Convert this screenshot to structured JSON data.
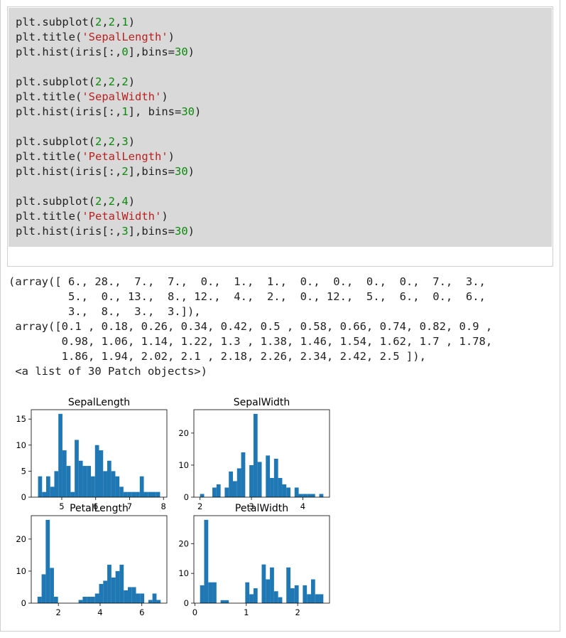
{
  "code": {
    "blocks": [
      [
        [
          {
            "t": "plt.subplot(",
            "c": "kw"
          },
          {
            "t": "2",
            "c": "num"
          },
          {
            "t": ",",
            "c": "kw"
          },
          {
            "t": "2",
            "c": "num"
          },
          {
            "t": ",",
            "c": "kw"
          },
          {
            "t": "1",
            "c": "num"
          },
          {
            "t": ")",
            "c": "kw"
          }
        ],
        [
          {
            "t": "plt.title(",
            "c": "kw"
          },
          {
            "t": "'SepalLength'",
            "c": "str"
          },
          {
            "t": ")",
            "c": "kw"
          }
        ],
        [
          {
            "t": "plt.hist(iris[:,",
            "c": "kw"
          },
          {
            "t": "0",
            "c": "num"
          },
          {
            "t": "],bins=",
            "c": "kw"
          },
          {
            "t": "30",
            "c": "num"
          },
          {
            "t": ")",
            "c": "kw"
          }
        ]
      ],
      [
        [
          {
            "t": "plt.subplot(",
            "c": "kw"
          },
          {
            "t": "2",
            "c": "num"
          },
          {
            "t": ",",
            "c": "kw"
          },
          {
            "t": "2",
            "c": "num"
          },
          {
            "t": ",",
            "c": "kw"
          },
          {
            "t": "2",
            "c": "num"
          },
          {
            "t": ")",
            "c": "kw"
          }
        ],
        [
          {
            "t": "plt.title(",
            "c": "kw"
          },
          {
            "t": "'SepalWidth'",
            "c": "str"
          },
          {
            "t": ")",
            "c": "kw"
          }
        ],
        [
          {
            "t": "plt.hist(iris[:,",
            "c": "kw"
          },
          {
            "t": "1",
            "c": "num"
          },
          {
            "t": "], bins=",
            "c": "kw"
          },
          {
            "t": "30",
            "c": "num"
          },
          {
            "t": ")",
            "c": "kw"
          }
        ]
      ],
      [
        [
          {
            "t": "plt.subplot(",
            "c": "kw"
          },
          {
            "t": "2",
            "c": "num"
          },
          {
            "t": ",",
            "c": "kw"
          },
          {
            "t": "2",
            "c": "num"
          },
          {
            "t": ",",
            "c": "kw"
          },
          {
            "t": "3",
            "c": "num"
          },
          {
            "t": ")",
            "c": "kw"
          }
        ],
        [
          {
            "t": "plt.title(",
            "c": "kw"
          },
          {
            "t": "'PetalLength'",
            "c": "str"
          },
          {
            "t": ")",
            "c": "kw"
          }
        ],
        [
          {
            "t": "plt.hist(iris[:,",
            "c": "kw"
          },
          {
            "t": "2",
            "c": "num"
          },
          {
            "t": "],bins=",
            "c": "kw"
          },
          {
            "t": "30",
            "c": "num"
          },
          {
            "t": ")",
            "c": "kw"
          }
        ]
      ],
      [
        [
          {
            "t": "plt.subplot(",
            "c": "kw"
          },
          {
            "t": "2",
            "c": "num"
          },
          {
            "t": ",",
            "c": "kw"
          },
          {
            "t": "2",
            "c": "num"
          },
          {
            "t": ",",
            "c": "kw"
          },
          {
            "t": "4",
            "c": "num"
          },
          {
            "t": ")",
            "c": "kw"
          }
        ],
        [
          {
            "t": "plt.title(",
            "c": "kw"
          },
          {
            "t": "'PetalWidth'",
            "c": "str"
          },
          {
            "t": ")",
            "c": "kw"
          }
        ],
        [
          {
            "t": "plt.hist(iris[:,",
            "c": "kw"
          },
          {
            "t": "3",
            "c": "num"
          },
          {
            "t": "],bins=",
            "c": "kw"
          },
          {
            "t": "30",
            "c": "num"
          },
          {
            "t": ")",
            "c": "kw"
          }
        ]
      ]
    ]
  },
  "output": {
    "lines": [
      "(array([ 6., 28.,  7.,  7.,  0.,  1.,  1.,  0.,  0.,  0.,  0.,  7.,  3.,",
      "         5.,  0., 13.,  8., 12.,  4.,  2.,  0., 12.,  5.,  6.,  0.,  6.,",
      "         3.,  8.,  3.,  3.]),",
      " array([0.1 , 0.18, 0.26, 0.34, 0.42, 0.5 , 0.58, 0.66, 0.74, 0.82, 0.9 ,",
      "        0.98, 1.06, 1.14, 1.22, 1.3 , 1.38, 1.46, 1.54, 1.62, 1.7 , 1.78,",
      "        1.86, 1.94, 2.02, 2.1 , 2.18, 2.26, 2.34, 2.42, 2.5 ]),",
      " <a list of 30 Patch objects>)"
    ]
  },
  "colors": {
    "bar": "#1f77b4",
    "string": "#ba2121",
    "number": "#0a8a0a",
    "code_bg": "#d9d9d9"
  },
  "chart_data": [
    {
      "type": "bar",
      "title": "SepalLength",
      "xlabel": "",
      "ylabel": "",
      "x_start": 4.3,
      "bin_width": 0.12,
      "values": [
        4,
        1,
        4,
        2,
        5,
        16,
        9,
        6,
        1,
        11,
        7,
        6,
        6,
        4,
        10,
        9,
        5,
        7,
        5,
        4,
        2,
        1,
        1,
        1,
        1,
        4,
        1,
        1,
        1,
        1
      ],
      "xlim": [
        4.1,
        8.1
      ],
      "ylim": [
        0,
        16.8
      ],
      "xticks": [
        5,
        6,
        7,
        8
      ],
      "xtick_labels": [
        "5",
        "6",
        "7",
        "8"
      ],
      "yticks": [
        0,
        5,
        10,
        15
      ],
      "ytick_labels": [
        "0",
        "5",
        "10",
        "15"
      ]
    },
    {
      "type": "bar",
      "title": "SepalWidth",
      "xlabel": "",
      "ylabel": "",
      "x_start": 2.0,
      "bin_width": 0.08,
      "values": [
        1,
        0,
        0,
        3,
        4,
        0,
        3,
        8,
        5,
        9,
        14,
        0,
        10,
        26,
        11,
        0,
        13,
        6,
        12,
        6,
        4,
        3,
        0,
        3,
        1,
        1,
        1,
        1,
        0,
        1
      ],
      "xlim": [
        1.88,
        4.52
      ],
      "ylim": [
        0,
        27.3
      ],
      "xticks": [
        2,
        3,
        4
      ],
      "xtick_labels": [
        "2",
        "3",
        "4"
      ],
      "yticks": [
        0,
        10,
        20
      ],
      "ytick_labels": [
        "0",
        "10",
        "20"
      ]
    },
    {
      "type": "bar",
      "title": "PetalLength",
      "xlabel": "",
      "ylabel": "",
      "x_start": 1.0,
      "bin_width": 0.1967,
      "values": [
        2,
        9,
        26,
        11,
        2,
        0,
        0,
        0,
        0,
        0,
        1,
        2,
        2,
        2,
        3,
        6,
        7,
        12,
        8,
        10,
        12,
        4,
        5,
        5,
        3,
        3,
        0,
        1,
        3,
        1
      ],
      "xlim": [
        0.7,
        7.2
      ],
      "ylim": [
        0,
        27.3
      ],
      "xticks": [
        2,
        4,
        6
      ],
      "xtick_labels": [
        "2",
        "4",
        "6"
      ],
      "yticks": [
        0,
        10,
        20
      ],
      "ytick_labels": [
        "0",
        "10",
        "20"
      ]
    },
    {
      "type": "bar",
      "title": "PetalWidth",
      "xlabel": "",
      "ylabel": "",
      "x_start": 0.1,
      "bin_width": 0.08,
      "values": [
        6,
        28,
        7,
        7,
        0,
        1,
        1,
        0,
        0,
        0,
        0,
        7,
        3,
        5,
        0,
        13,
        8,
        12,
        4,
        2,
        0,
        12,
        5,
        6,
        0,
        6,
        3,
        8,
        3,
        3
      ],
      "xlim": [
        -0.02,
        2.62
      ],
      "ylim": [
        0,
        29.4
      ],
      "xticks": [
        0,
        1,
        2
      ],
      "xtick_labels": [
        "0",
        "1",
        "2"
      ],
      "yticks": [
        0,
        10,
        20
      ],
      "ytick_labels": [
        "0",
        "10",
        "20"
      ]
    }
  ]
}
